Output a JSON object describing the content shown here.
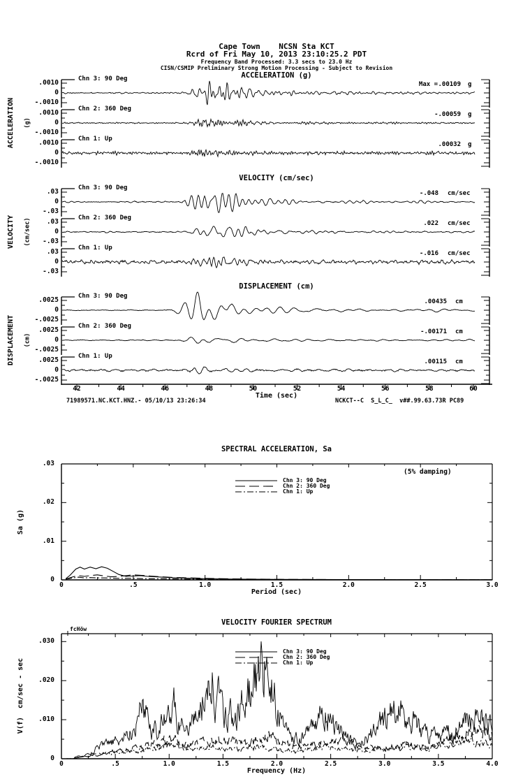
{
  "header": {
    "station_line": "Cape Town    NCSN Sta KCT",
    "record_line": "Rcrd of Fri May 10, 2013 23:10:25.2 PDT",
    "band_line": "Frequency Band Processed: 3.3 secs to 23.0 Hz",
    "disclaimer_line": "CISN/CSMIP Preliminary Strong Motion Processing - Subject to Revision"
  },
  "timeseries": {
    "xlabel": "Time (sec)",
    "x_ticks": [
      "42",
      "44",
      "46",
      "48",
      "50",
      "52",
      "54",
      "56",
      "58",
      "60"
    ],
    "footer_left": "71989571.NC.KCT.HNZ.- 05/10/13 23:26:34",
    "footer_right": "NCKCT--C  S_L_C_  v##.99.63.73R PC89"
  },
  "chart_data": [
    {
      "type": "line",
      "id": "acceleration-timeseries",
      "title": "ACCELERATION (g)",
      "axis_label": "ACCELERATION",
      "axis_unit": "(g)",
      "y_ticks": [
        ".0010",
        "0",
        "-.0010"
      ],
      "y_tick_value": 0.001,
      "x_range_sec": [
        41.3,
        60.8
      ],
      "series": [
        {
          "name": "Chn 3: 90 Deg",
          "max_prefix": "Max =",
          "max": ".00109",
          "unit": "g",
          "peak_value": 0.00109,
          "quiet_value": 4.5e-05,
          "tail_value": 0.00022,
          "freq_hz": 4.8,
          "peak_time": 47.9,
          "seed": 101
        },
        {
          "name": "Chn 2: 360 Deg",
          "max": "-.00059",
          "unit": "g",
          "peak_value": 0.00059,
          "quiet_value": 4.5e-05,
          "tail_value": 0.00016,
          "freq_hz": 5.0,
          "peak_time": 48.0,
          "seed": 102
        },
        {
          "name": "Chn 1: Up",
          "max": ".00032",
          "unit": "g",
          "peak_value": 0.00032,
          "quiet_value": 0.0001,
          "tail_value": 9e-05,
          "freq_hz": 5.8,
          "peak_time": 47.8,
          "seed": 103
        }
      ]
    },
    {
      "type": "line",
      "id": "velocity-timeseries",
      "title": "VELOCITY (cm/sec)",
      "axis_label": "VELOCITY",
      "axis_unit": "(cm/sec)",
      "y_ticks": [
        ".03",
        "0",
        "-.03"
      ],
      "y_tick_value": 0.03,
      "x_range_sec": [
        41.3,
        60.8
      ],
      "series": [
        {
          "name": "Chn 3: 90 Deg",
          "max": "-.048",
          "unit": "cm/sec",
          "peak_value": 0.048,
          "quiet_value": 0.0013,
          "tail_value": 0.007,
          "freq_hz": 2.1,
          "peak_time": 47.9,
          "seed": 201
        },
        {
          "name": "Chn 2: 360 Deg",
          "max": ".022",
          "unit": "cm/sec",
          "peak_value": 0.022,
          "quiet_value": 0.0013,
          "tail_value": 0.005,
          "freq_hz": 2.3,
          "peak_time": 48.1,
          "seed": 202
        },
        {
          "name": "Chn 1: Up",
          "max": "-.016",
          "unit": "cm/sec",
          "peak_value": 0.016,
          "quiet_value": 0.0035,
          "tail_value": 0.0035,
          "freq_hz": 2.9,
          "peak_time": 47.8,
          "seed": 203
        }
      ]
    },
    {
      "type": "line",
      "id": "displacement-timeseries",
      "title": "DISPLACEMENT (cm)",
      "axis_label": "DISPLACEMENT",
      "axis_unit": "(cm)",
      "y_ticks": [
        ".0025",
        "0",
        "-.0025"
      ],
      "y_tick_value": 0.0025,
      "x_range_sec": [
        41.3,
        60.8
      ],
      "series": [
        {
          "name": "Chn 3: 90 Deg",
          "max": ".00435",
          "unit": "cm",
          "peak_value": 0.00435,
          "quiet_value": 8e-05,
          "tail_value": 0.0007,
          "freq_hz": 1.05,
          "peak_time": 47.5,
          "seed": 301
        },
        {
          "name": "Chn 2: 360 Deg",
          "max": "-.00171",
          "unit": "cm",
          "peak_value": 0.00171,
          "quiet_value": 8e-05,
          "tail_value": 0.00035,
          "freq_hz": 1.2,
          "peak_time": 47.8,
          "seed": 302
        },
        {
          "name": "Chn 1: Up",
          "max": ".00115",
          "unit": "cm",
          "peak_value": 0.00115,
          "quiet_value": 0.00018,
          "tail_value": 0.00022,
          "freq_hz": 1.5,
          "peak_time": 47.7,
          "seed": 303
        }
      ]
    },
    {
      "type": "line",
      "id": "spectral-acceleration",
      "title": "SPECTRAL ACCELERATION, Sa",
      "annotation": "(5% damping)",
      "ylabel": "Sa (g)",
      "xlabel": "Period (sec)",
      "ylim": [
        0,
        0.03
      ],
      "xlim": [
        0,
        3.0
      ],
      "y_ticks": [
        ".03",
        ".02",
        ".01",
        "0"
      ],
      "x_ticks": [
        "0",
        ".5",
        "1.0",
        "1.5",
        "2.0",
        "2.5",
        "3.0"
      ],
      "legend": [
        "Chn 3: 90 Deg",
        "Chn 2: 360 Deg",
        "Chn 1: Up"
      ],
      "series": [
        {
          "name": "Chn 3: 90 Deg",
          "style": "solid",
          "points": [
            [
              0.03,
              0.0003
            ],
            [
              0.06,
              0.0012
            ],
            [
              0.1,
              0.0028
            ],
            [
              0.13,
              0.0033
            ],
            [
              0.16,
              0.0028
            ],
            [
              0.2,
              0.0033
            ],
            [
              0.24,
              0.0029
            ],
            [
              0.28,
              0.0034
            ],
            [
              0.32,
              0.003
            ],
            [
              0.36,
              0.0022
            ],
            [
              0.4,
              0.0014
            ],
            [
              0.45,
              0.0009
            ],
            [
              0.5,
              0.001
            ],
            [
              0.55,
              0.0011
            ],
            [
              0.6,
              0.0009
            ],
            [
              0.7,
              0.0007
            ],
            [
              0.8,
              0.0005
            ],
            [
              0.9,
              0.0004
            ],
            [
              1.0,
              0.0003
            ],
            [
              1.2,
              0.0002
            ],
            [
              1.5,
              0.00012
            ],
            [
              2.0,
              7e-05
            ],
            [
              2.5,
              5e-05
            ],
            [
              3.0,
              4e-05
            ]
          ]
        },
        {
          "name": "Chn 2: 360 Deg",
          "style": "dashed",
          "points": [
            [
              0.03,
              0.0002
            ],
            [
              0.08,
              0.0008
            ],
            [
              0.12,
              0.0011
            ],
            [
              0.16,
              0.0009
            ],
            [
              0.2,
              0.0011
            ],
            [
              0.25,
              0.0013
            ],
            [
              0.3,
              0.001
            ],
            [
              0.35,
              0.0008
            ],
            [
              0.4,
              0.0009
            ],
            [
              0.45,
              0.0011
            ],
            [
              0.5,
              0.0013
            ],
            [
              0.55,
              0.0012
            ],
            [
              0.62,
              0.001
            ],
            [
              0.7,
              0.0008
            ],
            [
              0.8,
              0.0006
            ],
            [
              0.9,
              0.0005
            ],
            [
              1.0,
              0.0004
            ],
            [
              1.2,
              0.00025
            ],
            [
              1.5,
              0.00015
            ],
            [
              2.0,
              8e-05
            ],
            [
              2.5,
              5e-05
            ],
            [
              3.0,
              4e-05
            ]
          ]
        },
        {
          "name": "Chn 1: Up",
          "style": "dashdot",
          "points": [
            [
              0.03,
              0.0002
            ],
            [
              0.08,
              0.0005
            ],
            [
              0.12,
              0.0007
            ],
            [
              0.16,
              0.0005
            ],
            [
              0.2,
              0.0006
            ],
            [
              0.25,
              0.0005
            ],
            [
              0.3,
              0.0005
            ],
            [
              0.4,
              0.0004
            ],
            [
              0.5,
              0.0004
            ],
            [
              0.6,
              0.0003
            ],
            [
              0.7,
              0.0003
            ],
            [
              0.85,
              0.0002
            ],
            [
              1.0,
              0.00015
            ],
            [
              1.3,
              0.0001
            ],
            [
              1.7,
              6e-05
            ],
            [
              2.2,
              4e-05
            ],
            [
              3.0,
              3e-05
            ]
          ]
        }
      ]
    },
    {
      "type": "line",
      "id": "velocity-fourier-spectrum",
      "title": "VELOCITY FOURIER SPECTRUM",
      "corner_label": "fcHöw",
      "ylabel": "V(f)  cm/sec - sec",
      "xlabel": "Frequency (Hz)",
      "ylim": [
        0,
        0.032
      ],
      "xlim": [
        0,
        4.0
      ],
      "y_ticks": [
        ".030",
        ".020",
        ".010",
        "0"
      ],
      "x_ticks": [
        "0",
        ".5",
        "1.0",
        "1.5",
        "2.0",
        "2.5",
        "3.0",
        "3.5",
        "4.0"
      ],
      "legend": [
        "Chn 3: 90 Deg",
        "Chn 2: 360 Deg",
        "Chn 1: Up"
      ],
      "series": [
        {
          "name": "Chn 3: 90 Deg",
          "style": "solid",
          "seed": 31,
          "envelope": [
            [
              0.08,
              0.0001
            ],
            [
              0.15,
              0.0005
            ],
            [
              0.25,
              0.001
            ],
            [
              0.35,
              0.003
            ],
            [
              0.45,
              0.004
            ],
            [
              0.55,
              0.005
            ],
            [
              0.65,
              0.007
            ],
            [
              0.72,
              0.012
            ],
            [
              0.78,
              0.013
            ],
            [
              0.85,
              0.008
            ],
            [
              0.95,
              0.009
            ],
            [
              1.0,
              0.012
            ],
            [
              1.05,
              0.014
            ],
            [
              1.1,
              0.009
            ],
            [
              1.2,
              0.01
            ],
            [
              1.3,
              0.014
            ],
            [
              1.4,
              0.02
            ],
            [
              1.45,
              0.016
            ],
            [
              1.55,
              0.011
            ],
            [
              1.65,
              0.013
            ],
            [
              1.75,
              0.017
            ],
            [
              1.85,
              0.025
            ],
            [
              1.92,
              0.023
            ],
            [
              2.0,
              0.014
            ],
            [
              2.1,
              0.007
            ],
            [
              2.2,
              0.005
            ],
            [
              2.3,
              0.007
            ],
            [
              2.4,
              0.012
            ],
            [
              2.45,
              0.013
            ],
            [
              2.55,
              0.009
            ],
            [
              2.65,
              0.005
            ],
            [
              2.75,
              0.004
            ],
            [
              2.85,
              0.006
            ],
            [
              2.95,
              0.009
            ],
            [
              3.05,
              0.012
            ],
            [
              3.15,
              0.013
            ],
            [
              3.25,
              0.01
            ],
            [
              3.35,
              0.007
            ],
            [
              3.45,
              0.006
            ],
            [
              3.55,
              0.007
            ],
            [
              3.65,
              0.006
            ],
            [
              3.75,
              0.009
            ],
            [
              3.85,
              0.012
            ],
            [
              3.95,
              0.01
            ],
            [
              4.0,
              0.008
            ]
          ]
        },
        {
          "name": "Chn 2: 360 Deg",
          "style": "dashed",
          "seed": 32,
          "envelope": [
            [
              0.1,
              0.0001
            ],
            [
              0.3,
              0.001
            ],
            [
              0.5,
              0.002
            ],
            [
              0.7,
              0.003
            ],
            [
              0.9,
              0.004
            ],
            [
              1.0,
              0.006
            ],
            [
              1.1,
              0.004
            ],
            [
              1.3,
              0.004
            ],
            [
              1.5,
              0.005
            ],
            [
              1.7,
              0.004
            ],
            [
              1.9,
              0.006
            ],
            [
              2.0,
              0.005
            ],
            [
              2.2,
              0.003
            ],
            [
              2.4,
              0.004
            ],
            [
              2.6,
              0.005
            ],
            [
              2.8,
              0.003
            ],
            [
              3.0,
              0.003
            ],
            [
              3.2,
              0.004
            ],
            [
              3.4,
              0.003
            ],
            [
              3.6,
              0.005
            ],
            [
              3.8,
              0.007
            ],
            [
              3.9,
              0.008
            ],
            [
              4.0,
              0.006
            ]
          ]
        },
        {
          "name": "Chn 1: Up",
          "style": "dashdot",
          "seed": 33,
          "envelope": [
            [
              0.1,
              0.0001
            ],
            [
              0.3,
              0.0008
            ],
            [
              0.5,
              0.0015
            ],
            [
              0.7,
              0.002
            ],
            [
              0.9,
              0.003
            ],
            [
              1.0,
              0.004
            ],
            [
              1.2,
              0.0025
            ],
            [
              1.4,
              0.003
            ],
            [
              1.6,
              0.0025
            ],
            [
              1.8,
              0.003
            ],
            [
              2.0,
              0.0025
            ],
            [
              2.2,
              0.002
            ],
            [
              2.4,
              0.003
            ],
            [
              2.6,
              0.0025
            ],
            [
              2.8,
              0.002
            ],
            [
              3.0,
              0.0025
            ],
            [
              3.2,
              0.003
            ],
            [
              3.4,
              0.0025
            ],
            [
              3.6,
              0.004
            ],
            [
              3.8,
              0.005
            ],
            [
              4.0,
              0.004
            ]
          ]
        }
      ]
    }
  ]
}
